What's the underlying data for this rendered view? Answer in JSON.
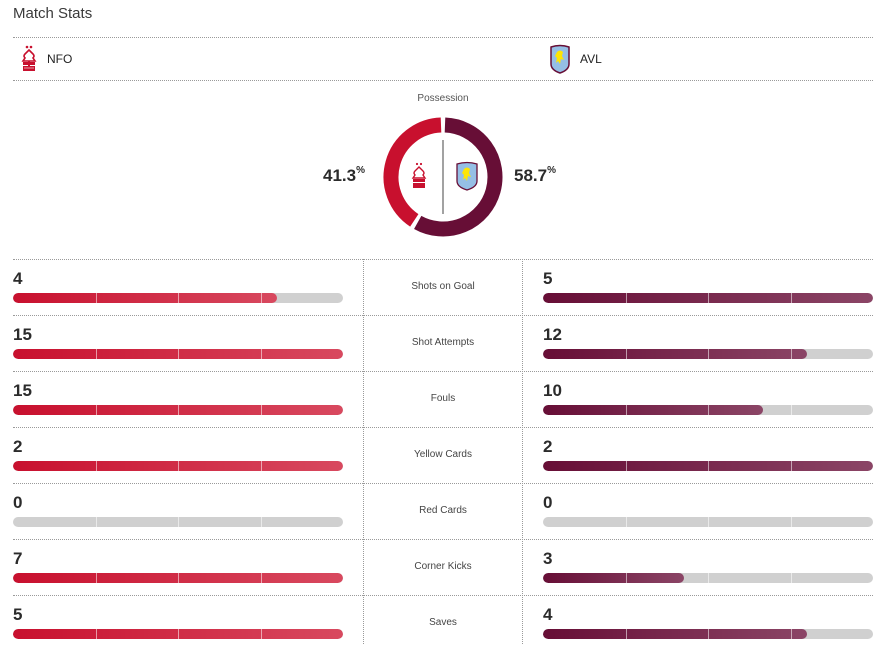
{
  "header": {
    "title": "Match Stats"
  },
  "teams": {
    "home": {
      "abbr": "NFO",
      "crest_icon": "nottingham-forest-crest-icon",
      "color": "#c8102e",
      "color_end": "#d8495f"
    },
    "away": {
      "abbr": "AVL",
      "crest_icon": "aston-villa-crest-icon",
      "color": "#670e36",
      "color_end": "#8b4566"
    }
  },
  "possession": {
    "label": "Possession",
    "home": 41.3,
    "away": 58.7,
    "home_display": "41.3",
    "away_display": "58.7",
    "unit": "%"
  },
  "stats": [
    {
      "label": "Shots on Goal",
      "home": 4,
      "away": 5
    },
    {
      "label": "Shot Attempts",
      "home": 15,
      "away": 12
    },
    {
      "label": "Fouls",
      "home": 15,
      "away": 10
    },
    {
      "label": "Yellow Cards",
      "home": 2,
      "away": 2
    },
    {
      "label": "Red Cards",
      "home": 0,
      "away": 0
    },
    {
      "label": "Corner Kicks",
      "home": 7,
      "away": 3
    },
    {
      "label": "Saves",
      "home": 5,
      "away": 4
    }
  ]
}
